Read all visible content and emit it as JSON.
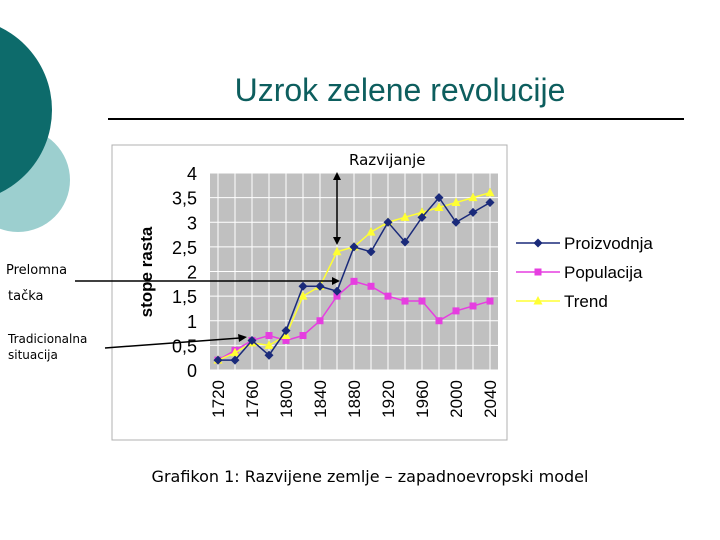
{
  "slide": {
    "title": "Uzrok zelene revolucije",
    "caption": "Grafikon 1: Razvijene zemlje – zapadnoevropski model"
  },
  "annotations": {
    "top": "Razvijanje",
    "turning_point_line1": "Prelomna",
    "turning_point_line2": "tačka",
    "traditional_line1": "Tradicionalna",
    "traditional_line2": "situacija"
  },
  "colors": {
    "accent_dark": "#0d6b6b",
    "accent_light": "#9ccfcf",
    "plot_bg": "#c0c0c0",
    "proizvodnja": "#1a2a7a",
    "populacija": "#e63ee0",
    "trend": "#ffff33"
  },
  "chart_data": {
    "type": "line",
    "ylabel": "stope rasta",
    "xlabel": "",
    "ylim": [
      0,
      4
    ],
    "yticks": [
      "0",
      "0,5",
      "1",
      "1,5",
      "2",
      "2,5",
      "3",
      "3,5",
      "4"
    ],
    "grid": true,
    "legend_position": "right",
    "x": [
      1720,
      1740,
      1760,
      1780,
      1800,
      1820,
      1840,
      1860,
      1880,
      1900,
      1920,
      1940,
      1960,
      1980,
      2000,
      2020,
      2040
    ],
    "x_tick_labels": [
      "1720",
      "1760",
      "1800",
      "1840",
      "1880",
      "1920",
      "1960",
      "2000",
      "2040"
    ],
    "series": [
      {
        "name": "Proizvodnja",
        "marker": "diamond",
        "values": [
          0.2,
          0.2,
          0.6,
          0.3,
          0.8,
          1.7,
          1.7,
          1.6,
          2.5,
          2.4,
          3.0,
          2.6,
          3.1,
          3.5,
          3.0,
          3.2,
          3.4
        ]
      },
      {
        "name": "Populacija",
        "marker": "square",
        "values": [
          0.2,
          0.4,
          0.6,
          0.7,
          0.6,
          0.7,
          1.0,
          1.5,
          1.8,
          1.7,
          1.5,
          1.4,
          1.4,
          1.0,
          1.2,
          1.3,
          1.4
        ]
      },
      {
        "name": "Trend",
        "marker": "triangle",
        "values": [
          0.2,
          0.35,
          0.55,
          0.5,
          0.7,
          1.5,
          1.7,
          2.4,
          2.5,
          2.8,
          3.0,
          3.1,
          3.2,
          3.3,
          3.4,
          3.5,
          3.6
        ]
      }
    ]
  }
}
